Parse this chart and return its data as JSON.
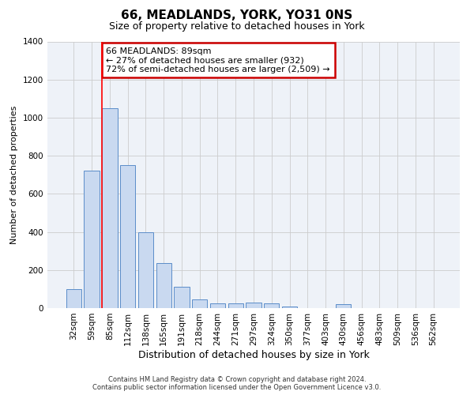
{
  "title": "66, MEADLANDS, YORK, YO31 0NS",
  "subtitle": "Size of property relative to detached houses in York",
  "xlabel": "Distribution of detached houses by size in York",
  "ylabel": "Number of detached properties",
  "categories": [
    "32sqm",
    "59sqm",
    "85sqm",
    "112sqm",
    "138sqm",
    "165sqm",
    "191sqm",
    "218sqm",
    "244sqm",
    "271sqm",
    "297sqm",
    "324sqm",
    "350sqm",
    "377sqm",
    "403sqm",
    "430sqm",
    "456sqm",
    "483sqm",
    "509sqm",
    "536sqm",
    "562sqm"
  ],
  "values": [
    100,
    720,
    1050,
    750,
    400,
    235,
    110,
    45,
    25,
    25,
    30,
    25,
    10,
    0,
    0,
    20,
    0,
    0,
    0,
    0,
    0
  ],
  "bar_color": "#c9d9f0",
  "bar_edge_color": "#5b8dc9",
  "red_line_index": 2,
  "annotation_line1": "66 MEADLANDS: 89sqm",
  "annotation_line2": "← 27% of detached houses are smaller (932)",
  "annotation_line3": "72% of semi-detached houses are larger (2,509) →",
  "annotation_box_color": "#ffffff",
  "annotation_box_edge": "#cc0000",
  "ylim": [
    0,
    1400
  ],
  "yticks": [
    0,
    200,
    400,
    600,
    800,
    1000,
    1200,
    1400
  ],
  "grid_color": "#cccccc",
  "background_color": "#eef2f8",
  "footer_line1": "Contains HM Land Registry data © Crown copyright and database right 2024.",
  "footer_line2": "Contains public sector information licensed under the Open Government Licence v3.0.",
  "title_fontsize": 11,
  "subtitle_fontsize": 9,
  "ylabel_fontsize": 8,
  "xlabel_fontsize": 9,
  "annotation_fontsize": 8,
  "tick_fontsize": 7.5,
  "footer_fontsize": 6
}
